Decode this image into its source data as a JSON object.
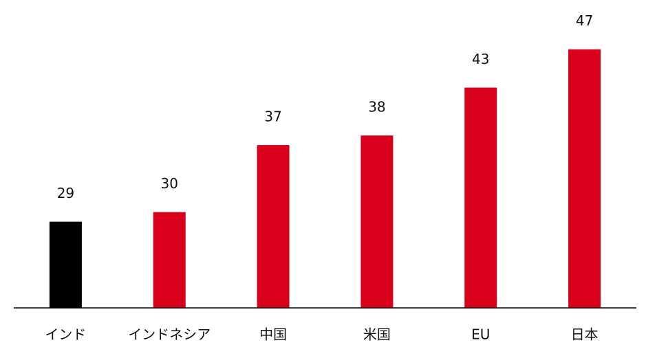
{
  "chart_data": {
    "type": "bar",
    "categories": [
      "インド",
      "インドネシア",
      "中国",
      "米国",
      "EU",
      "日本"
    ],
    "values": [
      29,
      30,
      37,
      38,
      43,
      47
    ],
    "colors": [
      "#000000",
      "#d9001b",
      "#d9001b",
      "#d9001b",
      "#d9001b",
      "#d9001b"
    ],
    "ylim": [
      20,
      51
    ]
  }
}
